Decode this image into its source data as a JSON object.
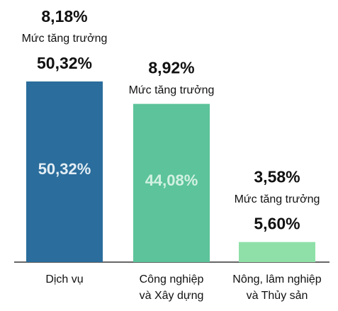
{
  "chart_data": {
    "type": "bar",
    "categories": [
      [
        "Dịch vụ"
      ],
      [
        "Công nghiệp",
        "và Xây dựng"
      ],
      [
        "Nông, lâm nghiệp",
        "và Thủy sản"
      ]
    ],
    "values": [
      50.32,
      44.08,
      5.6
    ],
    "value_labels": [
      "50,32%",
      "44,08%",
      "5,60%"
    ],
    "growth": [
      8.18,
      8.92,
      3.58
    ],
    "growth_labels": [
      "8,18%",
      "8,92%",
      "3,58%"
    ],
    "growth_caption": "Mức tăng trưởng",
    "colors": [
      "#2b6d9c",
      "#5cc39a",
      "#8fe0a8"
    ]
  }
}
